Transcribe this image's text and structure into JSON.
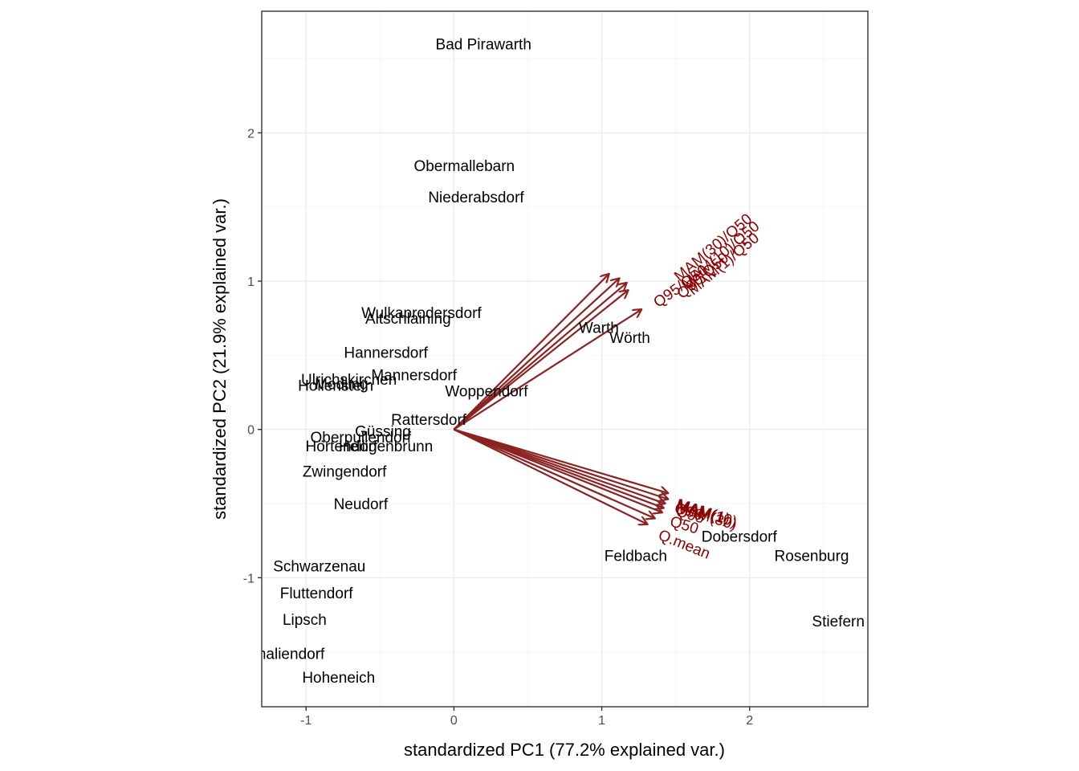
{
  "chart_data": {
    "type": "scatter",
    "subtype": "biplot",
    "xlabel": "standardized PC1 (77.2% explained var.)",
    "ylabel": "standardized PC2 (21.9% explained var.)",
    "xlim": [
      -1.3,
      2.8
    ],
    "ylim": [
      -1.87,
      2.82
    ],
    "xticks": [
      -1,
      0,
      1,
      2
    ],
    "yticks": [
      -1,
      0,
      1,
      2
    ],
    "xtick_labels": [
      "-1",
      "0",
      "1",
      "2"
    ],
    "ytick_labels": [
      "-1",
      "0",
      "1",
      "2"
    ],
    "grid": true,
    "colors": {
      "arrow": "#8b2323",
      "loading_label": "#8b0000",
      "panel_border": "#333333",
      "grid": "#ebebeb"
    },
    "points": [
      {
        "label": "Bad Pirawarth",
        "x": 0.2,
        "y": 2.6
      },
      {
        "label": "Obermallebarn",
        "x": 0.07,
        "y": 1.78
      },
      {
        "label": "Niederabsdorf",
        "x": 0.15,
        "y": 1.57
      },
      {
        "label": "Wulkaprodersdorf",
        "x": -0.22,
        "y": 0.79
      },
      {
        "label": "Altschlaining",
        "x": -0.31,
        "y": 0.75
      },
      {
        "label": "Warth",
        "x": 0.98,
        "y": 0.69
      },
      {
        "label": "Wörth",
        "x": 1.19,
        "y": 0.62
      },
      {
        "label": "Hannersdorf",
        "x": -0.46,
        "y": 0.52
      },
      {
        "label": "Mannersdorf",
        "x": -0.27,
        "y": 0.37
      },
      {
        "label": "Ulrichskirchen",
        "x": -0.71,
        "y": 0.34
      },
      {
        "label": "Hollenstein",
        "x": -0.8,
        "y": 0.3
      },
      {
        "label": "Mödling",
        "x": -0.76,
        "y": 0.31
      },
      {
        "label": "Woppendorf",
        "x": 0.22,
        "y": 0.26
      },
      {
        "label": "Rattersdorf",
        "x": -0.17,
        "y": 0.07
      },
      {
        "label": "Güssing",
        "x": -0.48,
        "y": -0.01
      },
      {
        "label": "Oberpullendorf",
        "x": -0.63,
        "y": -0.05
      },
      {
        "label": "Heiligenbrunn",
        "x": -0.46,
        "y": -0.11
      },
      {
        "label": "Hörtendorf",
        "x": -0.76,
        "y": -0.11
      },
      {
        "label": "Zwingendorf",
        "x": -0.74,
        "y": -0.28
      },
      {
        "label": "Neudorf",
        "x": -0.63,
        "y": -0.5
      },
      {
        "label": "Feldbach",
        "x": 1.23,
        "y": -0.85
      },
      {
        "label": "Dobersdorf",
        "x": 1.93,
        "y": -0.72
      },
      {
        "label": "Rosenburg",
        "x": 2.42,
        "y": -0.85
      },
      {
        "label": "Schwarzenau",
        "x": -0.91,
        "y": -0.92
      },
      {
        "label": "Fluttendorf",
        "x": -0.93,
        "y": -1.1
      },
      {
        "label": "Lipsch",
        "x": -1.01,
        "y": -1.28
      },
      {
        "label": "Stiefern",
        "x": 2.6,
        "y": -1.29
      },
      {
        "label": "Amaliendorf",
        "x": -1.15,
        "y": -1.51
      },
      {
        "label": "Hoheneich",
        "x": -0.78,
        "y": -1.67
      }
    ],
    "loadings": [
      {
        "label": "MAM(30)/Q50",
        "x": 1.05,
        "y": 1.05
      },
      {
        "label": "MAM(10)/Q50",
        "x": 1.12,
        "y": 1.02
      },
      {
        "label": "MAM(1)/Q50",
        "x": 1.17,
        "y": 0.99
      },
      {
        "label": "Q90/Q50",
        "x": 1.18,
        "y": 0.94
      },
      {
        "label": "Q95/Q50",
        "x": 1.27,
        "y": 0.81
      },
      {
        "label": "MAM(1)",
        "x": 1.45,
        "y": -0.43
      },
      {
        "label": "MAM(10)",
        "x": 1.45,
        "y": -0.47
      },
      {
        "label": "MAM(30)",
        "x": 1.43,
        "y": -0.5
      },
      {
        "label": "Q90",
        "x": 1.42,
        "y": -0.53
      },
      {
        "label": "Q95",
        "x": 1.41,
        "y": -0.56
      },
      {
        "label": "Q50",
        "x": 1.36,
        "y": -0.6
      },
      {
        "label": "Q.mean",
        "x": 1.31,
        "y": -0.64
      }
    ],
    "loading_label_positions": [
      {
        "x": 1.75,
        "y": 1.23,
        "angle": -40
      },
      {
        "x": 1.8,
        "y": 1.18,
        "angle": -40
      },
      {
        "x": 1.82,
        "y": 1.12,
        "angle": -40
      },
      {
        "x": 1.68,
        "y": 1.04,
        "angle": -40
      },
      {
        "x": 1.53,
        "y": 0.97,
        "angle": -35
      },
      {
        "x": 1.69,
        "y": -0.55,
        "angle": 17
      },
      {
        "x": 1.71,
        "y": -0.56,
        "angle": 17
      },
      {
        "x": 1.71,
        "y": -0.58,
        "angle": 17
      },
      {
        "x": 1.59,
        "y": -0.55,
        "angle": 17
      },
      {
        "x": 1.6,
        "y": -0.57,
        "angle": 17
      },
      {
        "x": 1.56,
        "y": -0.64,
        "angle": 17
      },
      {
        "x": 1.56,
        "y": -0.77,
        "angle": 22
      }
    ]
  }
}
